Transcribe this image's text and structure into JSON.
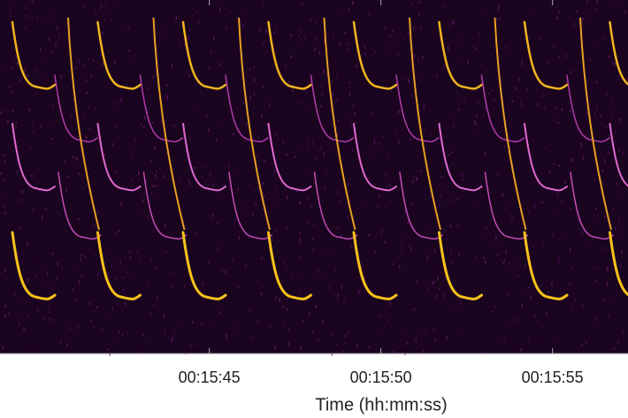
{
  "chart_data": {
    "type": "spectrogram",
    "xlabel": "Time (hh:mm:ss)",
    "xlim": [
      938.9,
      957.2
    ],
    "xticks": [
      {
        "value": 945,
        "label": "00:15:45"
      },
      {
        "value": 950,
        "label": "00:15:50"
      },
      {
        "value": 955,
        "label": "00:15:55"
      }
    ]
  }
}
